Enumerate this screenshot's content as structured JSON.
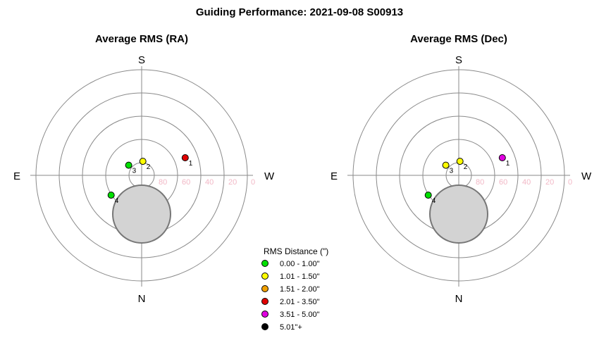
{
  "title": "Guiding Performance: 2021-09-08 S00913",
  "chart_data": [
    {
      "type": "scatter",
      "title": "Average RMS (RA)",
      "cardinals": {
        "top": "S",
        "bottom": "N",
        "left": "E",
        "right": "W"
      },
      "radial_ticks": [
        "80",
        "60",
        "40",
        "20",
        "0"
      ],
      "zenith_masked": true,
      "points": [
        {
          "label": "1",
          "az_deg": 292,
          "alt_deg": 50,
          "color": "#e00000"
        },
        {
          "label": "2",
          "az_deg": 355,
          "alt_deg": 78,
          "color": "#ffff00"
        },
        {
          "label": "3",
          "az_deg": 52,
          "alt_deg": 76,
          "color": "#00e000"
        },
        {
          "label": "4",
          "az_deg": 123,
          "alt_deg": 59,
          "color": "#00e000"
        }
      ]
    },
    {
      "type": "scatter",
      "title": "Average RMS (Dec)",
      "cardinals": {
        "top": "S",
        "bottom": "N",
        "left": "E",
        "right": "W"
      },
      "radial_ticks": [
        "80",
        "60",
        "40",
        "20",
        "0"
      ],
      "zenith_masked": true,
      "points": [
        {
          "label": "1",
          "az_deg": 292,
          "alt_deg": 50,
          "color": "#e000e0"
        },
        {
          "label": "2",
          "az_deg": 355,
          "alt_deg": 78,
          "color": "#ffff00"
        },
        {
          "label": "3",
          "az_deg": 52,
          "alt_deg": 76,
          "color": "#ffff00"
        },
        {
          "label": "4",
          "az_deg": 123,
          "alt_deg": 59,
          "color": "#00e000"
        }
      ]
    }
  ],
  "legend": {
    "title": "RMS Distance (\")",
    "items": [
      {
        "label": "0.00 - 1.00\"",
        "color": "#00e000"
      },
      {
        "label": "1.01 - 1.50\"",
        "color": "#ffff00"
      },
      {
        "label": "1.51 - 2.00\"",
        "color": "#f0a000"
      },
      {
        "label": "2.01 - 3.50\"",
        "color": "#e00000"
      },
      {
        "label": "3.51 - 5.00\"",
        "color": "#e000e0"
      },
      {
        "label": "5.01\"+",
        "color": "#000000"
      }
    ]
  }
}
